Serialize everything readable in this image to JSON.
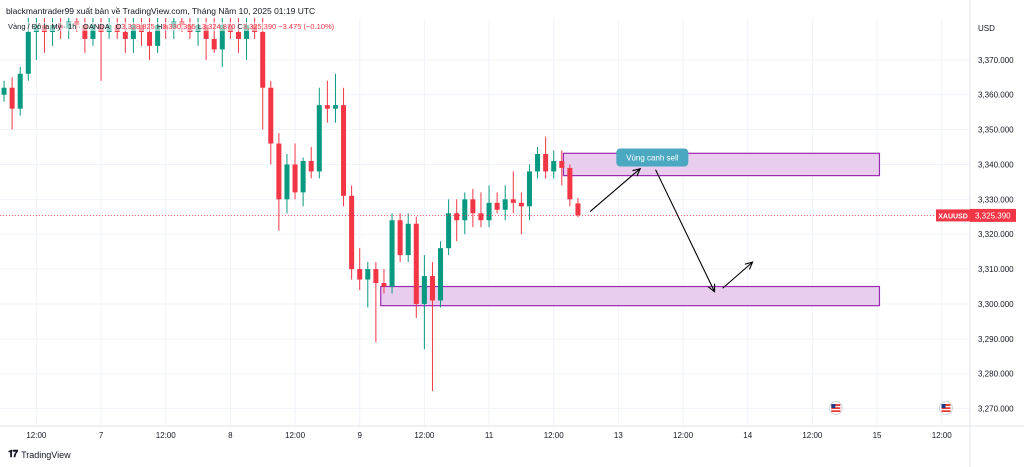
{
  "header": {
    "attribution": "blackmantrader99 xuất bản về TradingView.com, Tháng Năm 10, 2025 01:19 UTC"
  },
  "legend": {
    "symbol_desc": "Vàng / Đô la Mỹ · 1h · OANDA",
    "open_label": "O",
    "open": "3,328.825",
    "high_label": "H",
    "high": "3,330.355",
    "low_label": "L",
    "low": "3,324.870",
    "close_label": "C",
    "close": "3,325.390",
    "change": "−3.475 (−0.10%)"
  },
  "branding": {
    "text": "TradingView"
  },
  "colors": {
    "up": "#089981",
    "down": "#f23645",
    "zone_fill": "#e8cdee",
    "zone_stroke": "#9c27b0",
    "callout_bg": "#4aa8c0",
    "price_tag": "#f23645",
    "grid": "#f0f3fa",
    "axis_text": "#131722"
  },
  "chart_data": {
    "type": "candlestick",
    "symbol": "XAUUSD",
    "currency": "USD",
    "timeframe": "1h",
    "y_ticks": [
      3270,
      3280,
      3290,
      3300,
      3310,
      3320,
      3330,
      3340,
      3350,
      3360,
      3370
    ],
    "y_tick_labels": [
      "3,270.000",
      "3,280.000",
      "3,290.000",
      "3,300.000",
      "3,310.000",
      "3,320.000",
      "3,330.000",
      "3,340.000",
      "3,350.000",
      "3,360.000",
      "3,370.000"
    ],
    "ylim": [
      3265,
      3382
    ],
    "x_labels": [
      {
        "t": 4,
        "label": "12:00"
      },
      {
        "t": 12,
        "label": "7"
      },
      {
        "t": 20,
        "label": "12:00"
      },
      {
        "t": 28,
        "label": "8"
      },
      {
        "t": 36,
        "label": "12:00"
      },
      {
        "t": 44,
        "label": "9"
      },
      {
        "t": 52,
        "label": "12:00"
      },
      {
        "t": 60,
        "label": "11"
      },
      {
        "t": 68,
        "label": "12:00"
      },
      {
        "t": 76,
        "label": "13"
      },
      {
        "t": 84,
        "label": "12:00"
      },
      {
        "t": 92,
        "label": "14"
      },
      {
        "t": 100,
        "label": "12:00"
      },
      {
        "t": 108,
        "label": "15"
      },
      {
        "t": 116,
        "label": "12:00"
      }
    ],
    "xlim": [
      -0.5,
      119.5
    ],
    "last_price": 3325.39,
    "last_price_label": "3,325.390",
    "symbol_tag": "XAUUSD",
    "candles": [
      [
        0,
        3360,
        3364,
        3358,
        3362
      ],
      [
        1,
        3362,
        3365,
        3350,
        3356
      ],
      [
        2,
        3356,
        3368,
        3354,
        3366
      ],
      [
        3,
        3366,
        3382,
        3364,
        3378
      ],
      [
        4,
        3378,
        3382,
        3370,
        3380
      ],
      [
        5,
        3380,
        3382,
        3372,
        3378
      ],
      [
        6,
        3378,
        3382,
        3374,
        3380
      ],
      [
        7,
        3380,
        3382,
        3376,
        3379
      ],
      [
        8,
        3379,
        3382,
        3376,
        3381
      ],
      [
        9,
        3381,
        3382,
        3378,
        3380
      ],
      [
        10,
        3380,
        3382,
        3372,
        3376
      ],
      [
        11,
        3376,
        3382,
        3374,
        3380
      ],
      [
        12,
        3380,
        3382,
        3364,
        3378
      ],
      [
        13,
        3378,
        3382,
        3376,
        3380
      ],
      [
        14,
        3380,
        3382,
        3376,
        3378
      ],
      [
        15,
        3378,
        3382,
        3372,
        3376
      ],
      [
        16,
        3376,
        3382,
        3372,
        3380
      ],
      [
        17,
        3380,
        3382,
        3374,
        3378
      ],
      [
        18,
        3378,
        3382,
        3370,
        3374
      ],
      [
        19,
        3374,
        3382,
        3372,
        3380
      ],
      [
        20,
        3380,
        3382,
        3376,
        3379
      ],
      [
        21,
        3379,
        3382,
        3376,
        3381
      ],
      [
        22,
        3381,
        3382,
        3378,
        3380
      ],
      [
        23,
        3380,
        3382,
        3376,
        3378
      ],
      [
        24,
        3378,
        3382,
        3374,
        3380
      ],
      [
        25,
        3380,
        3382,
        3370,
        3376
      ],
      [
        26,
        3376,
        3382,
        3372,
        3373
      ],
      [
        27,
        3373,
        3382,
        3368,
        3380
      ],
      [
        28,
        3380,
        3382,
        3376,
        3378
      ],
      [
        29,
        3378,
        3382,
        3372,
        3376
      ],
      [
        30,
        3376,
        3382,
        3370,
        3380
      ],
      [
        31,
        3380,
        3382,
        3376,
        3378
      ],
      [
        32,
        3378,
        3382,
        3350,
        3362
      ],
      [
        33,
        3362,
        3364,
        3340,
        3346
      ],
      [
        34,
        3346,
        3349,
        3321,
        3330
      ],
      [
        35,
        3330,
        3343,
        3326,
        3340
      ],
      [
        36,
        3340,
        3346,
        3330,
        3332
      ],
      [
        37,
        3332,
        3342,
        3328,
        3341
      ],
      [
        38,
        3341,
        3345,
        3336,
        3338
      ],
      [
        39,
        3338,
        3362,
        3336,
        3357
      ],
      [
        40,
        3357,
        3364,
        3352,
        3356
      ],
      [
        41,
        3356,
        3366,
        3352,
        3357
      ],
      [
        42,
        3357,
        3362,
        3328,
        3331
      ],
      [
        43,
        3331,
        3334,
        3307,
        3310
      ],
      [
        44,
        3310,
        3316,
        3304,
        3307
      ],
      [
        45,
        3307,
        3312,
        3299,
        3310
      ],
      [
        46,
        3310,
        3312,
        3289,
        3306
      ],
      [
        47,
        3306,
        3310,
        3303,
        3305
      ],
      [
        48,
        3305,
        3326,
        3303,
        3324
      ],
      [
        49,
        3324,
        3326,
        3312,
        3314
      ],
      [
        50,
        3314,
        3326,
        3312,
        3323
      ],
      [
        51,
        3323,
        3325,
        3296,
        3300
      ],
      [
        52,
        3300,
        3314,
        3287,
        3308
      ],
      [
        53,
        3308,
        3312,
        3275,
        3301
      ],
      [
        54,
        3301,
        3318,
        3299,
        3316
      ],
      [
        55,
        3316,
        3330,
        3314,
        3326
      ],
      [
        56,
        3326,
        3330,
        3318,
        3324
      ],
      [
        57,
        3324,
        3332,
        3320,
        3330
      ],
      [
        58,
        3330,
        3333,
        3322,
        3326
      ],
      [
        59,
        3326,
        3332,
        3322,
        3324
      ],
      [
        60,
        3324,
        3334,
        3322,
        3329
      ],
      [
        61,
        3329,
        3332,
        3326,
        3327
      ],
      [
        62,
        3327,
        3334,
        3324,
        3330
      ],
      [
        63,
        3330,
        3338,
        3326,
        3329
      ],
      [
        64,
        3329,
        3332,
        3320,
        3328
      ],
      [
        65,
        3328,
        3340,
        3324,
        3338
      ],
      [
        66,
        3338,
        3345,
        3336,
        3343
      ],
      [
        67,
        3343,
        3348,
        3336,
        3338
      ],
      [
        68,
        3338,
        3344,
        3336,
        3341
      ],
      [
        69,
        3341,
        3344,
        3334,
        3339
      ],
      [
        70,
        3339,
        3340,
        3328,
        3330
      ],
      [
        71,
        3328.825,
        3330.355,
        3324.87,
        3325.39
      ]
    ],
    "zones": [
      {
        "t_start": 69.2,
        "t_end": 108.3,
        "y_bottom": 3336.8,
        "y_top": 3343.2
      },
      {
        "t_start": 46.6,
        "t_end": 108.3,
        "y_bottom": 3299.5,
        "y_top": 3305.0
      }
    ],
    "paths": [
      [
        [
          72.5,
          3326.5
        ],
        [
          78.7,
          3338.8
        ]
      ],
      [
        [
          80.6,
          3338.5
        ],
        [
          87.9,
          3303.5
        ]
      ],
      [
        [
          88.9,
          3304.5
        ],
        [
          92.6,
          3312.0
        ]
      ]
    ],
    "callout": {
      "text": "Vùng canh sell",
      "t": 80.2,
      "y": 3342.0
    },
    "event_markers": [
      {
        "t": 102.9,
        "y": 3269.0
      },
      {
        "t": 143,
        "y": 3269.0
      }
    ]
  }
}
